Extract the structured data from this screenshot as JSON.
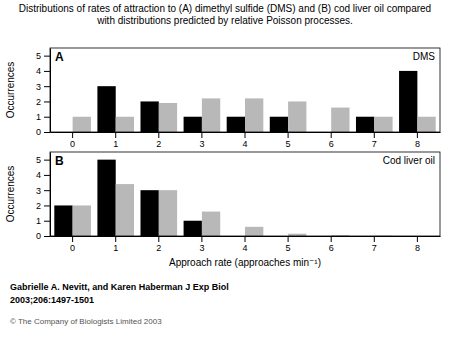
{
  "chart_data": [
    {
      "type": "bar",
      "title": "Distributions of rates of attraction to (A) dimethyl sulfide (DMS) and (B) cod liver oil compared\nwith distributions predicted by relative Poisson processes.",
      "categories": [
        "0",
        "1",
        "2",
        "3",
        "4",
        "5",
        "6",
        "7",
        "8"
      ],
      "series": [
        {
          "color": "#000000",
          "values": [
            0,
            3,
            2,
            1,
            1,
            1,
            0,
            1,
            4
          ]
        },
        {
          "color": "#b8b8b8",
          "values": [
            1.0,
            1.0,
            1.9,
            2.2,
            2.2,
            2.0,
            1.6,
            1.0,
            1.0
          ]
        }
      ],
      "ylabel": "Occurrences",
      "ylim": [
        0,
        5.5
      ],
      "yticks": [
        0,
        1,
        2,
        3,
        4,
        5
      ],
      "grid": false,
      "annotations": [
        "A",
        "DMS"
      ]
    },
    {
      "type": "bar",
      "categories": [
        "0",
        "1",
        "2",
        "3",
        "4",
        "5",
        "6",
        "7",
        "8"
      ],
      "series": [
        {
          "color": "#000000",
          "values": [
            2,
            5,
            3,
            1,
            0,
            0,
            0,
            0,
            0
          ]
        },
        {
          "color": "#b8b8b8",
          "values": [
            2.0,
            3.4,
            3.0,
            1.6,
            0.6,
            0.15,
            0.05,
            0.02,
            0.0
          ]
        }
      ],
      "xlabel": "Approach rate (approaches min⁻¹)",
      "ylabel": "Occurrences",
      "ylim": [
        0,
        5.5
      ],
      "yticks": [
        0,
        1,
        2,
        3,
        4,
        5
      ],
      "grid": false,
      "annotations": [
        "B",
        "Cod liver oil",
        "Gabrielle A. Nevitt, and Karen Haberman J Exp Biol",
        "2003;206:1497-1501",
        "© The Company of Biologists Limited 2003"
      ]
    }
  ]
}
